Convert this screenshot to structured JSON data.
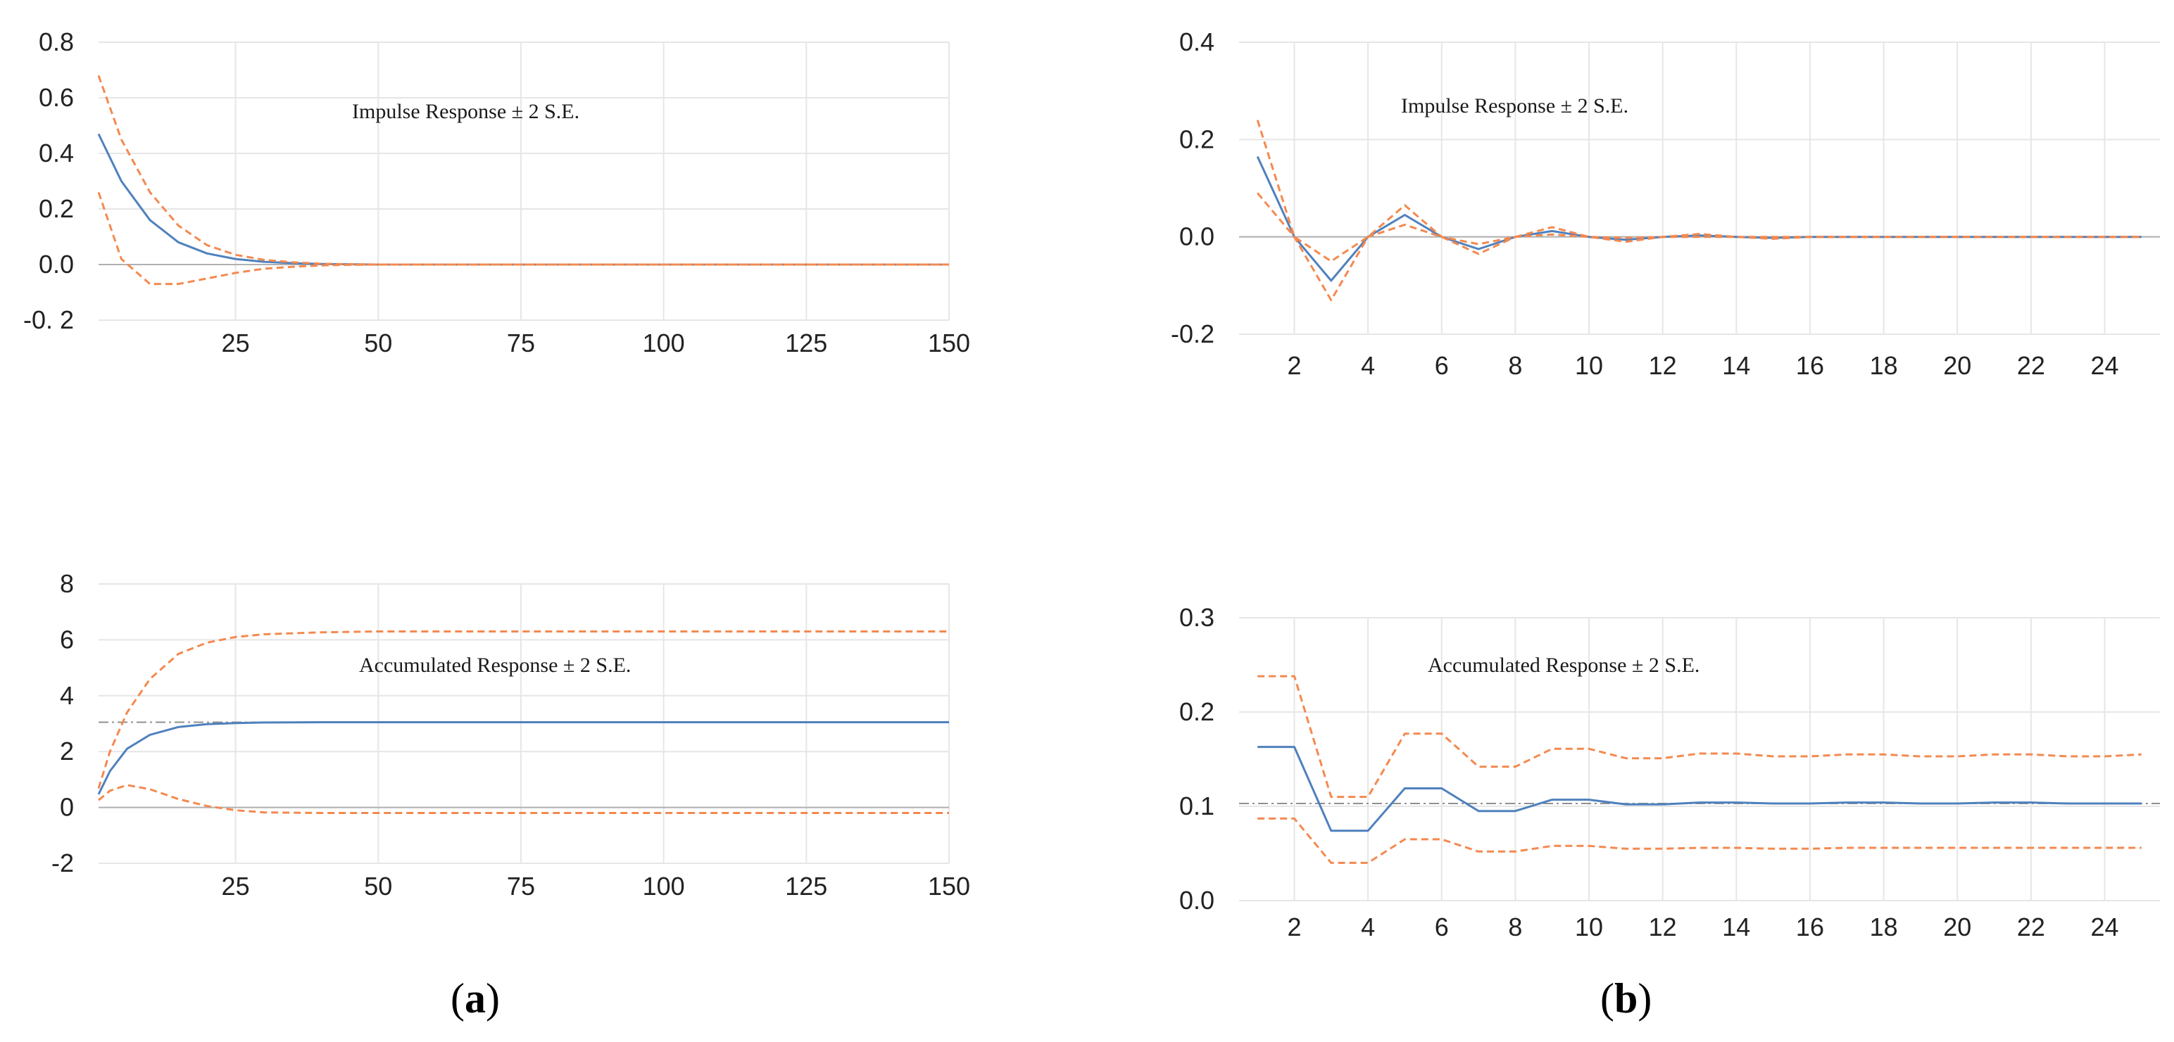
{
  "panel_labels": {
    "a_open": "(",
    "a_letter": "a",
    "a_close": ")",
    "b_open": "(",
    "b_letter": "b",
    "b_close": ")"
  },
  "colors": {
    "response": "#4f81bd",
    "bands": "#f4894f",
    "grid": "#e6e6e6",
    "zero": "#b0b0b0",
    "ref": "#909090"
  },
  "chart_data": [
    {
      "id": "a-top",
      "type": "line",
      "annotation": "Impulse Response ± 2 S.E.",
      "x_range": [
        1,
        150
      ],
      "ylim": [
        -0.2,
        0.8
      ],
      "y_ticks": [
        0.8,
        0.6,
        0.4,
        0.2,
        0.0,
        -0.2
      ],
      "y_tick_labels": [
        "0.8",
        "0.6",
        "0.4",
        "0.2",
        "0.0",
        "-0. 2"
      ],
      "x_ticks": [
        25,
        50,
        75,
        100,
        125,
        150
      ],
      "x_tick_labels": [
        "25",
        "50",
        "75",
        "100",
        "125",
        "150"
      ],
      "grid": true,
      "series": [
        {
          "name": "response",
          "style": "solid",
          "x": [
            1,
            5,
            10,
            15,
            20,
            25,
            30,
            35,
            40,
            45,
            50,
            75,
            100,
            125,
            150
          ],
          "values": [
            0.47,
            0.3,
            0.16,
            0.08,
            0.04,
            0.02,
            0.01,
            0.005,
            0.002,
            0.001,
            0.0,
            0.0,
            0.0,
            0.0,
            0.0
          ]
        },
        {
          "name": "upper",
          "style": "dashed",
          "x": [
            1,
            5,
            10,
            15,
            20,
            25,
            30,
            35,
            40,
            45,
            50,
            75,
            100,
            125,
            150
          ],
          "values": [
            0.68,
            0.45,
            0.26,
            0.14,
            0.07,
            0.035,
            0.017,
            0.008,
            0.003,
            0.001,
            0.0,
            0.0,
            0.0,
            0.0,
            0.0
          ]
        },
        {
          "name": "lower",
          "style": "dashed",
          "x": [
            1,
            5,
            10,
            15,
            20,
            25,
            30,
            35,
            40,
            45,
            50,
            75,
            100,
            125,
            150
          ],
          "values": [
            0.26,
            0.02,
            -0.07,
            -0.07,
            -0.05,
            -0.03,
            -0.015,
            -0.008,
            -0.003,
            -0.001,
            0.0,
            0.0,
            0.0,
            0.0,
            0.0
          ]
        }
      ]
    },
    {
      "id": "a-bottom",
      "type": "line",
      "annotation": "Accumulated Response ± 2 S.E.",
      "x_range": [
        1,
        150
      ],
      "ylim": [
        -2,
        8
      ],
      "y_ticks": [
        8,
        6,
        4,
        2,
        0,
        -2
      ],
      "y_tick_labels": [
        "8",
        "6",
        "4",
        "2",
        "0",
        "-2"
      ],
      "x_ticks": [
        25,
        50,
        75,
        100,
        125,
        150
      ],
      "x_tick_labels": [
        "25",
        "50",
        "75",
        "100",
        "125",
        "150"
      ],
      "grid": true,
      "reference_line": 3.05,
      "series": [
        {
          "name": "response",
          "style": "solid",
          "x": [
            1,
            3,
            6,
            10,
            15,
            20,
            25,
            30,
            40,
            50,
            75,
            100,
            125,
            150
          ],
          "values": [
            0.47,
            1.3,
            2.1,
            2.6,
            2.88,
            2.98,
            3.02,
            3.04,
            3.05,
            3.05,
            3.05,
            3.05,
            3.05,
            3.05
          ]
        },
        {
          "name": "upper",
          "style": "dashed",
          "x": [
            1,
            3,
            6,
            10,
            15,
            20,
            25,
            30,
            40,
            50,
            75,
            100,
            125,
            150
          ],
          "values": [
            0.68,
            2.0,
            3.4,
            4.6,
            5.5,
            5.9,
            6.1,
            6.2,
            6.27,
            6.3,
            6.3,
            6.3,
            6.3,
            6.3
          ]
        },
        {
          "name": "lower",
          "style": "dashed",
          "x": [
            1,
            3,
            6,
            10,
            15,
            20,
            25,
            30,
            40,
            50,
            75,
            100,
            125,
            150
          ],
          "values": [
            0.26,
            0.6,
            0.8,
            0.65,
            0.3,
            0.05,
            -0.1,
            -0.18,
            -0.2,
            -0.2,
            -0.2,
            -0.2,
            -0.2,
            -0.2
          ]
        }
      ]
    },
    {
      "id": "b-top",
      "type": "line",
      "annotation": "Impulse Response ± 2 S.E.",
      "x_range": [
        0.5,
        25.5
      ],
      "ylim": [
        -0.2,
        0.4
      ],
      "y_ticks": [
        0.4,
        0.2,
        0.0,
        -0.2
      ],
      "y_tick_labels": [
        "0.4",
        "0.2",
        "0.0",
        "-0.2"
      ],
      "x_ticks": [
        2,
        4,
        6,
        8,
        10,
        12,
        14,
        16,
        18,
        20,
        22,
        24
      ],
      "x_tick_labels": [
        "2",
        "4",
        "6",
        "8",
        "10",
        "12",
        "14",
        "16",
        "18",
        "20",
        "22",
        "24"
      ],
      "grid": true,
      "series": [
        {
          "name": "response",
          "style": "solid",
          "x": [
            1,
            2,
            3,
            4,
            5,
            6,
            7,
            8,
            9,
            10,
            11,
            12,
            13,
            14,
            15,
            16,
            17,
            18,
            19,
            20,
            21,
            22,
            23,
            24,
            25
          ],
          "values": [
            0.165,
            0.0,
            -0.09,
            0.0,
            0.045,
            0.0,
            -0.025,
            0.0,
            0.012,
            0.0,
            -0.006,
            0.0,
            0.003,
            0.0,
            -0.002,
            0.0,
            0.0,
            0.0,
            0.0,
            0.0,
            0.0,
            0.0,
            0.0,
            0.0,
            0.0
          ]
        },
        {
          "name": "upper",
          "style": "dashed",
          "x": [
            1,
            2,
            3,
            4,
            5,
            6,
            7,
            8,
            9,
            10,
            11,
            12,
            13,
            14,
            15,
            16,
            17,
            18,
            19,
            20,
            21,
            22,
            23,
            24,
            25
          ],
          "values": [
            0.24,
            0.0,
            -0.05,
            0.0,
            0.065,
            0.0,
            -0.015,
            0.0,
            0.02,
            0.0,
            -0.002,
            0.0,
            0.006,
            0.0,
            0.0,
            0.0,
            0.0,
            0.0,
            0.0,
            0.0,
            0.0,
            0.0,
            0.0,
            0.0,
            0.0
          ]
        },
        {
          "name": "lower",
          "style": "dashed",
          "x": [
            1,
            2,
            3,
            4,
            5,
            6,
            7,
            8,
            9,
            10,
            11,
            12,
            13,
            14,
            15,
            16,
            17,
            18,
            19,
            20,
            21,
            22,
            23,
            24,
            25
          ],
          "values": [
            0.09,
            0.0,
            -0.13,
            0.0,
            0.025,
            0.0,
            -0.035,
            0.0,
            0.005,
            0.0,
            -0.01,
            0.0,
            0.0,
            0.0,
            -0.004,
            0.0,
            0.0,
            0.0,
            0.0,
            0.0,
            0.0,
            0.0,
            0.0,
            0.0,
            0.0
          ]
        }
      ]
    },
    {
      "id": "b-bottom",
      "type": "line",
      "annotation": "Accumulated Response ± 2 S.E.",
      "x_range": [
        0.5,
        25.5
      ],
      "ylim": [
        0.0,
        0.3
      ],
      "y_ticks": [
        0.3,
        0.2,
        0.1,
        0.0
      ],
      "y_tick_labels": [
        "0.3",
        "0.2",
        "0.1",
        "0.0"
      ],
      "x_ticks": [
        2,
        4,
        6,
        8,
        10,
        12,
        14,
        16,
        18,
        20,
        22,
        24
      ],
      "x_tick_labels": [
        "2",
        "4",
        "6",
        "8",
        "10",
        "12",
        "14",
        "16",
        "18",
        "20",
        "22",
        "24"
      ],
      "grid": true,
      "reference_line": 0.103,
      "series": [
        {
          "name": "response",
          "style": "solid",
          "x": [
            1,
            2,
            3,
            4,
            5,
            6,
            7,
            8,
            9,
            10,
            11,
            12,
            13,
            14,
            15,
            16,
            17,
            18,
            19,
            20,
            21,
            22,
            23,
            24,
            25
          ],
          "values": [
            0.163,
            0.163,
            0.074,
            0.074,
            0.119,
            0.119,
            0.095,
            0.095,
            0.107,
            0.107,
            0.102,
            0.102,
            0.104,
            0.104,
            0.103,
            0.103,
            0.104,
            0.104,
            0.103,
            0.103,
            0.104,
            0.104,
            0.103,
            0.103,
            0.103
          ]
        },
        {
          "name": "upper",
          "style": "dashed",
          "x": [
            1,
            2,
            3,
            4,
            5,
            6,
            7,
            8,
            9,
            10,
            11,
            12,
            13,
            14,
            15,
            16,
            17,
            18,
            19,
            20,
            21,
            22,
            23,
            24,
            25
          ],
          "values": [
            0.238,
            0.238,
            0.11,
            0.11,
            0.177,
            0.177,
            0.142,
            0.142,
            0.161,
            0.161,
            0.151,
            0.151,
            0.156,
            0.156,
            0.153,
            0.153,
            0.155,
            0.155,
            0.153,
            0.153,
            0.155,
            0.155,
            0.153,
            0.153,
            0.155
          ]
        },
        {
          "name": "lower",
          "style": "dashed",
          "x": [
            1,
            2,
            3,
            4,
            5,
            6,
            7,
            8,
            9,
            10,
            11,
            12,
            13,
            14,
            15,
            16,
            17,
            18,
            19,
            20,
            21,
            22,
            23,
            24,
            25
          ],
          "values": [
            0.087,
            0.087,
            0.04,
            0.04,
            0.065,
            0.065,
            0.052,
            0.052,
            0.058,
            0.058,
            0.055,
            0.055,
            0.056,
            0.056,
            0.055,
            0.055,
            0.056,
            0.056,
            0.056,
            0.056,
            0.056,
            0.056,
            0.056,
            0.056,
            0.056
          ]
        }
      ]
    }
  ]
}
